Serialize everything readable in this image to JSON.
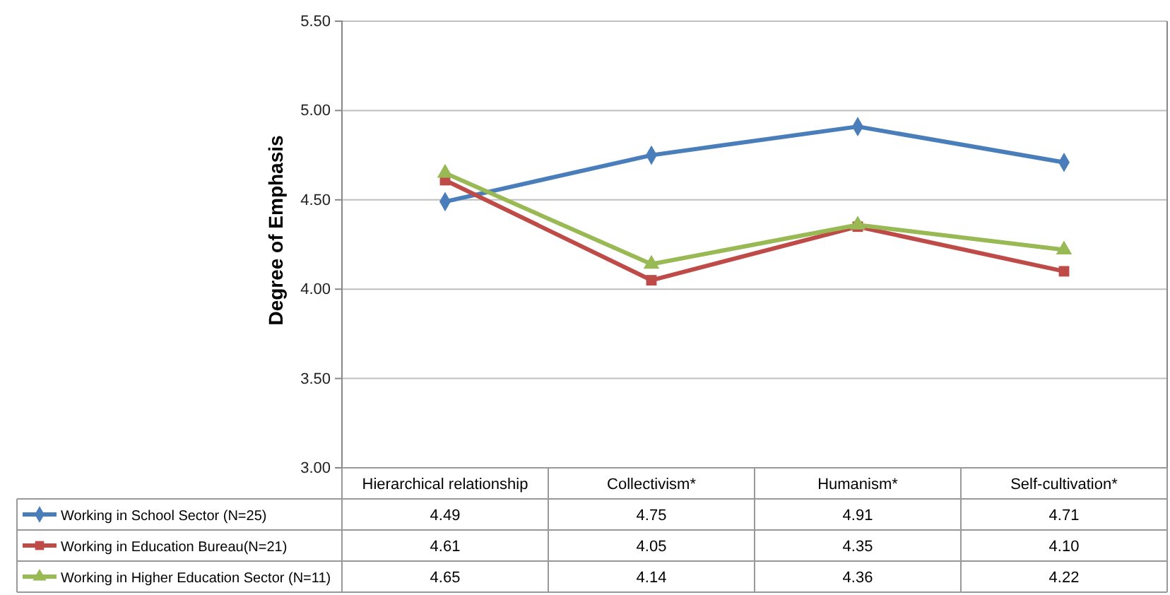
{
  "chart_data": {
    "type": "line",
    "ylabel": "Degree of Emphasis",
    "categories": [
      "Hierarchical relationship",
      "Collectivism*",
      "Humanism*",
      "Self-cultivation*"
    ],
    "ylim": [
      3.0,
      5.5
    ],
    "yticks": [
      {
        "value": 3.0,
        "label": "3.00"
      },
      {
        "value": 3.5,
        "label": "3.50"
      },
      {
        "value": 4.0,
        "label": "4.00"
      },
      {
        "value": 4.5,
        "label": "4.50"
      },
      {
        "value": 5.0,
        "label": "5.00"
      },
      {
        "value": 5.5,
        "label": "5.50"
      }
    ],
    "grid": "y",
    "legend": "bottom",
    "series": [
      {
        "name": "Working in School Sector (N=25)",
        "color": "#4a7ebb",
        "marker": "diamond",
        "values": [
          4.49,
          4.75,
          4.91,
          4.71
        ],
        "value_labels": [
          "4.49",
          "4.75",
          "4.91",
          "4.71"
        ]
      },
      {
        "name": "Working in Education Bureau(N=21)",
        "color": "#be4b48",
        "marker": "square",
        "values": [
          4.61,
          4.05,
          4.35,
          4.1
        ],
        "value_labels": [
          "4.61",
          "4.05",
          "4.35",
          "4.10"
        ]
      },
      {
        "name": "Working in Higher Education Sector (N=11)",
        "color": "#98b954",
        "marker": "triangle",
        "values": [
          4.65,
          4.14,
          4.36,
          4.22
        ],
        "value_labels": [
          "4.65",
          "4.14",
          "4.36",
          "4.22"
        ]
      }
    ]
  }
}
